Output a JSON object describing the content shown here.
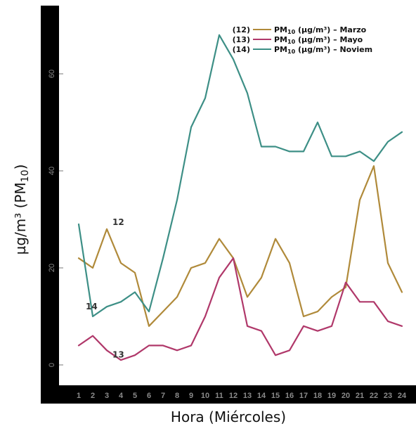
{
  "chart_data": {
    "type": "line",
    "xlabel": "Hora (Miércoles)",
    "ylabel": {
      "main": "µg/m³ (PM",
      "sub": "10",
      "end": ")"
    },
    "x": [
      1,
      2,
      3,
      4,
      5,
      6,
      7,
      8,
      9,
      10,
      11,
      12,
      13,
      14,
      15,
      16,
      17,
      18,
      19,
      20,
      21,
      22,
      23,
      24
    ],
    "xlim": [
      1,
      24
    ],
    "ylim": [
      0,
      70
    ],
    "yticks": [
      0,
      20,
      40,
      60
    ],
    "grid": false,
    "legend_position": "top-right",
    "series": [
      {
        "id": "12",
        "legend_prefix": "(12)",
        "legend_name": "PM",
        "legend_sub": "10",
        "legend_suffix": " (µg/m³) – Marzo",
        "inline_label": "12",
        "color": "#b08a3a",
        "values": [
          22,
          20,
          28,
          21,
          19,
          8,
          11,
          14,
          20,
          21,
          26,
          22,
          14,
          18,
          26,
          21,
          10,
          11,
          14,
          16,
          34,
          41,
          21,
          15
        ]
      },
      {
        "id": "13",
        "legend_prefix": "(13)",
        "legend_name": "PM",
        "legend_sub": "10",
        "legend_suffix": " (µg/m³) – Mayo",
        "inline_label": "13",
        "color": "#b0386a",
        "values": [
          4,
          6,
          3,
          1,
          2,
          4,
          4,
          3,
          4,
          10,
          18,
          22,
          8,
          7,
          2,
          3,
          8,
          7,
          8,
          17,
          13,
          13,
          9,
          8
        ]
      },
      {
        "id": "14",
        "legend_prefix": "(14)",
        "legend_name": "PM",
        "legend_sub": "10",
        "legend_suffix": " (µg/m³) – Noviem",
        "inline_label": "14",
        "color": "#3d8f86",
        "values": [
          29,
          10,
          12,
          13,
          15,
          11,
          22,
          34,
          49,
          55,
          68,
          63,
          56,
          45,
          45,
          44,
          44,
          50,
          43,
          43,
          44,
          42,
          46,
          48
        ]
      }
    ]
  }
}
